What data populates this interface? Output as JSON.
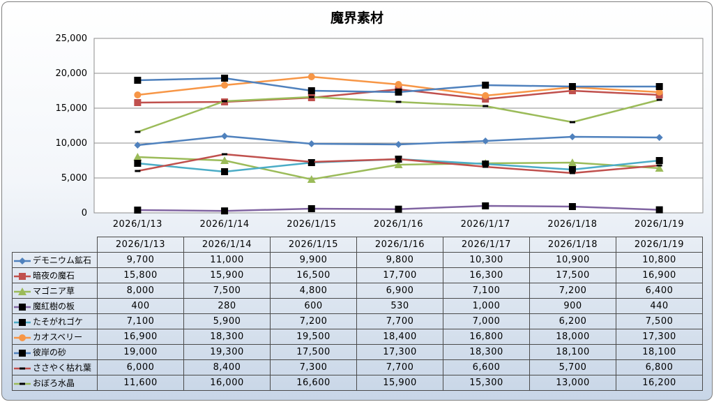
{
  "chart_data": {
    "type": "line",
    "title": "魔界素材",
    "xlabel": "",
    "ylabel": "",
    "categories": [
      "2026/1/13",
      "2026/1/14",
      "2026/1/15",
      "2026/1/16",
      "2026/1/17",
      "2026/1/18",
      "2026/1/19"
    ],
    "ylim": [
      0,
      25000
    ],
    "y_ticks": [
      "0",
      "5,000",
      "10,000",
      "15,000",
      "20,000",
      "25,000"
    ],
    "grid": true,
    "legend": "data-table",
    "series": [
      {
        "name": "デモニウム鉱石",
        "color": "#4f81bd",
        "marker": "diamond",
        "values": [
          9700,
          11000,
          9900,
          9800,
          10300,
          10900,
          10800
        ],
        "labels": [
          "9,700",
          "11,000",
          "9,900",
          "9,800",
          "10,300",
          "10,900",
          "10,800"
        ]
      },
      {
        "name": "暗夜の魔石",
        "color": "#c0504d",
        "marker": "square",
        "values": [
          15800,
          15900,
          16500,
          17700,
          16300,
          17500,
          16900
        ],
        "labels": [
          "15,800",
          "15,900",
          "16,500",
          "17,700",
          "16,300",
          "17,500",
          "16,900"
        ]
      },
      {
        "name": "マゴニア草",
        "color": "#9bbb59",
        "marker": "triangle",
        "values": [
          8000,
          7500,
          4800,
          6900,
          7100,
          7200,
          6400
        ],
        "labels": [
          "8,000",
          "7,500",
          "4,800",
          "6,900",
          "7,100",
          "7,200",
          "6,400"
        ]
      },
      {
        "name": "魔紅樹の板",
        "color": "#8064a2",
        "marker": "black-square",
        "values": [
          400,
          280,
          600,
          530,
          1000,
          900,
          440
        ],
        "labels": [
          "400",
          "280",
          "600",
          "530",
          "1,000",
          "900",
          "440"
        ]
      },
      {
        "name": "たそがれゴケ",
        "color": "#4bacc6",
        "marker": "black-square",
        "values": [
          7100,
          5900,
          7200,
          7700,
          7000,
          6200,
          7500
        ],
        "labels": [
          "7,100",
          "5,900",
          "7,200",
          "7,700",
          "7,000",
          "6,200",
          "7,500"
        ]
      },
      {
        "name": "カオスベリー",
        "color": "#f79646",
        "marker": "circle",
        "values": [
          16900,
          18300,
          19500,
          18400,
          16800,
          18000,
          17300
        ],
        "labels": [
          "16,900",
          "18,300",
          "19,500",
          "18,400",
          "16,800",
          "18,000",
          "17,300"
        ]
      },
      {
        "name": "彼岸の砂",
        "color": "#4f81bd",
        "marker": "black-square",
        "values": [
          19000,
          19300,
          17500,
          17300,
          18300,
          18100,
          18100
        ],
        "labels": [
          "19,000",
          "19,300",
          "17,500",
          "17,300",
          "18,300",
          "18,100",
          "18,100"
        ]
      },
      {
        "name": "ささやく枯れ葉",
        "color": "#c0504d",
        "marker": "dash",
        "values": [
          6000,
          8400,
          7300,
          7700,
          6600,
          5700,
          6800
        ],
        "labels": [
          "6,000",
          "8,400",
          "7,300",
          "7,700",
          "6,600",
          "5,700",
          "6,800"
        ]
      },
      {
        "name": "おぼろ水晶",
        "color": "#9bbb59",
        "marker": "dash",
        "values": [
          11600,
          16000,
          16600,
          15900,
          15300,
          13000,
          16200
        ],
        "labels": [
          "11,600",
          "16,000",
          "16,600",
          "15,900",
          "15,300",
          "13,000",
          "16,200"
        ]
      }
    ]
  }
}
